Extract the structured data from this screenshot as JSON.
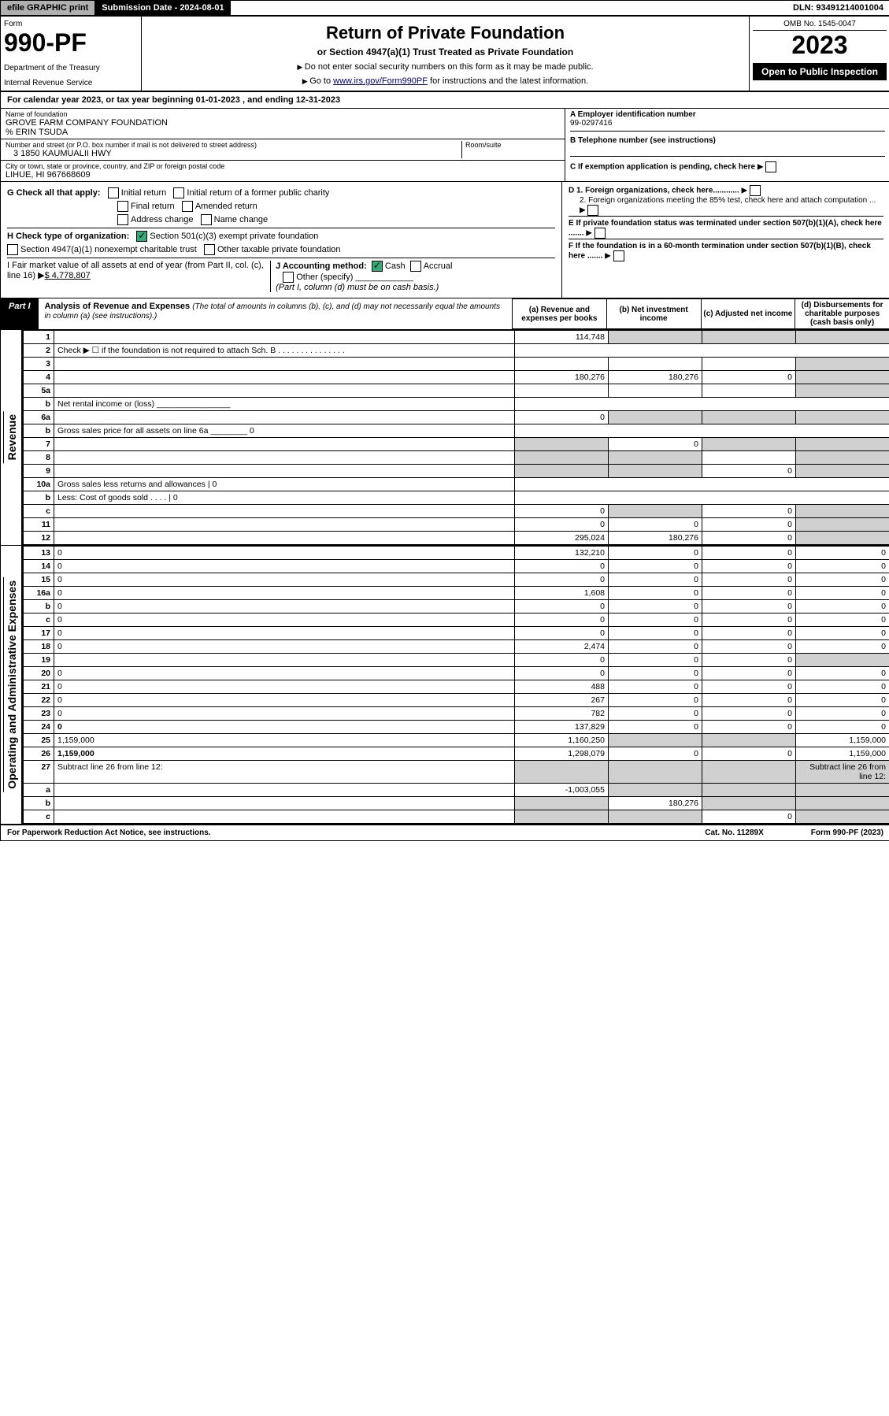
{
  "topbar": {
    "efile": "efile GRAPHIC print",
    "sub_label": "Submission Date - 2024-08-01",
    "dln": "DLN: 93491214001004"
  },
  "header": {
    "form_word": "Form",
    "form_num": "990-PF",
    "dept": "Department of the Treasury",
    "irs": "Internal Revenue Service",
    "title": "Return of Private Foundation",
    "subtitle": "or Section 4947(a)(1) Trust Treated as Private Foundation",
    "note1": "Do not enter social security numbers on this form as it may be made public.",
    "note2_prefix": "Go to ",
    "note2_link": "www.irs.gov/Form990PF",
    "note2_suffix": " for instructions and the latest information.",
    "omb": "OMB No. 1545-0047",
    "year": "2023",
    "open": "Open to Public Inspection"
  },
  "calendar": "For calendar year 2023, or tax year beginning 01-01-2023                           , and ending 12-31-2023",
  "entity": {
    "name_lbl": "Name of foundation",
    "name": "GROVE FARM COMPANY FOUNDATION",
    "care_of": "% ERIN TSUDA",
    "addr_lbl": "Number and street (or P.O. box number if mail is not delivered to street address)",
    "addr": "3 1850 KAUMUALII HWY",
    "room_lbl": "Room/suite",
    "room": "",
    "city_lbl": "City or town, state or province, country, and ZIP or foreign postal code",
    "city": "LIHUE, HI  967668609",
    "a_lbl": "A Employer identification number",
    "a_val": "99-0297416",
    "b_lbl": "B Telephone number (see instructions)",
    "b_val": "",
    "c_lbl": "C If exemption application is pending, check here",
    "d1": "D 1. Foreign organizations, check here............",
    "d2": "2. Foreign organizations meeting the 85% test, check here and attach computation ...",
    "e": "E  If private foundation status was terminated under section 507(b)(1)(A), check here .......",
    "f": "F  If the foundation is in a 60-month termination under section 507(b)(1)(B), check here ......."
  },
  "g": {
    "lbl": "G Check all that apply:",
    "opts": [
      "Initial return",
      "Initial return of a former public charity",
      "Final return",
      "Amended return",
      "Address change",
      "Name change"
    ]
  },
  "h": {
    "lbl": "H Check type of organization:",
    "opt1": "Section 501(c)(3) exempt private foundation",
    "opt1_checked": true,
    "opt2": "Section 4947(a)(1) nonexempt charitable trust",
    "opt3": "Other taxable private foundation"
  },
  "i": {
    "lbl": "I Fair market value of all assets at end of year (from Part II, col. (c), line 16) ",
    "val": "$  4,778,807"
  },
  "j": {
    "lbl": "J Accounting method:",
    "cash": "Cash",
    "cash_checked": true,
    "accrual": "Accrual",
    "other": "Other (specify)",
    "note": "(Part I, column (d) must be on cash basis.)"
  },
  "part1": {
    "label": "Part I",
    "title": "Analysis of Revenue and Expenses",
    "title_note": "(The total of amounts in columns (b), (c), and (d) may not necessarily equal the amounts in column (a) (see instructions).)",
    "cols": {
      "a": "(a)  Revenue and expenses per books",
      "b": "(b)  Net investment income",
      "c": "(c)  Adjusted net income",
      "d": "(d)  Disbursements for charitable purposes (cash basis only)"
    }
  },
  "revenue_label": "Revenue",
  "expenses_label": "Operating and Administrative Expenses",
  "rows": [
    {
      "n": "1",
      "d": "",
      "a": "114,748",
      "b": "",
      "c": "",
      "shade_bcd": true
    },
    {
      "n": "2",
      "d": "Check ▶ ☐ if the foundation is not required to attach Sch. B   .   .   .   .   .   .   .   .   .   .   .   .   .   .   .",
      "blank": true
    },
    {
      "n": "3",
      "d": "",
      "a": "",
      "b": "",
      "c": "",
      "shade_d": true
    },
    {
      "n": "4",
      "d": "",
      "a": "180,276",
      "b": "180,276",
      "c": "0",
      "shade_d": true
    },
    {
      "n": "5a",
      "d": "",
      "a": "",
      "b": "",
      "c": "",
      "shade_d": true
    },
    {
      "n": "b",
      "d": "Net rental income or (loss)   ________________",
      "blank": true
    },
    {
      "n": "6a",
      "d": "",
      "a": "0",
      "b": "",
      "c": "",
      "shade_bcd": true
    },
    {
      "n": "b",
      "d": "Gross sales price for all assets on line 6a ________ 0",
      "blank": true
    },
    {
      "n": "7",
      "d": "",
      "a": "",
      "b": "0",
      "c": "",
      "shade_a": true,
      "shade_cd": true
    },
    {
      "n": "8",
      "d": "",
      "a": "",
      "b": "",
      "c": "",
      "shade_ab": true,
      "shade_d": true
    },
    {
      "n": "9",
      "d": "",
      "a": "",
      "b": "",
      "c": "0",
      "shade_ab": true,
      "shade_d": true
    },
    {
      "n": "10a",
      "d": "Gross sales less returns and allowances   |           0",
      "blank": true
    },
    {
      "n": "b",
      "d": "Less: Cost of goods sold    .   .   .   .   |           0",
      "blank": true
    },
    {
      "n": "c",
      "d": "",
      "a": "0",
      "b": "",
      "c": "0",
      "shade_b": true,
      "shade_d": true
    },
    {
      "n": "11",
      "d": "",
      "a": "0",
      "b": "0",
      "c": "0",
      "shade_d": true
    },
    {
      "n": "12",
      "d": "",
      "a": "295,024",
      "b": "180,276",
      "c": "0",
      "bold": true,
      "shade_d": true
    }
  ],
  "exp_rows": [
    {
      "n": "13",
      "d": "0",
      "a": "132,210",
      "b": "0",
      "c": "0"
    },
    {
      "n": "14",
      "d": "0",
      "a": "0",
      "b": "0",
      "c": "0"
    },
    {
      "n": "15",
      "d": "0",
      "a": "0",
      "b": "0",
      "c": "0"
    },
    {
      "n": "16a",
      "d": "0",
      "a": "1,608",
      "b": "0",
      "c": "0"
    },
    {
      "n": "b",
      "d": "0",
      "a": "0",
      "b": "0",
      "c": "0"
    },
    {
      "n": "c",
      "d": "0",
      "a": "0",
      "b": "0",
      "c": "0"
    },
    {
      "n": "17",
      "d": "0",
      "a": "0",
      "b": "0",
      "c": "0"
    },
    {
      "n": "18",
      "d": "0",
      "a": "2,474",
      "b": "0",
      "c": "0"
    },
    {
      "n": "19",
      "d": "",
      "a": "0",
      "b": "0",
      "c": "0",
      "shade_d": true
    },
    {
      "n": "20",
      "d": "0",
      "a": "0",
      "b": "0",
      "c": "0"
    },
    {
      "n": "21",
      "d": "0",
      "a": "488",
      "b": "0",
      "c": "0"
    },
    {
      "n": "22",
      "d": "0",
      "a": "267",
      "b": "0",
      "c": "0"
    },
    {
      "n": "23",
      "d": "0",
      "a": "782",
      "b": "0",
      "c": "0"
    },
    {
      "n": "24",
      "d": "0",
      "a": "137,829",
      "b": "0",
      "c": "0",
      "bold": true
    },
    {
      "n": "25",
      "d": "1,159,000",
      "a": "1,160,250",
      "b": "",
      "c": "",
      "shade_bc": true
    },
    {
      "n": "26",
      "d": "1,159,000",
      "a": "1,298,079",
      "b": "0",
      "c": "0",
      "bold": true
    },
    {
      "n": "27",
      "d": "Subtract line 26 from line 12:",
      "blank_amt": true,
      "shade_all": true
    },
    {
      "n": "a",
      "d": "",
      "a": "-1,003,055",
      "b": "",
      "c": "",
      "bold": true,
      "shade_bcd": true
    },
    {
      "n": "b",
      "d": "",
      "a": "",
      "b": "180,276",
      "c": "",
      "bold": true,
      "shade_a": true,
      "shade_cd": true
    },
    {
      "n": "c",
      "d": "",
      "a": "",
      "b": "",
      "c": "0",
      "bold": true,
      "shade_ab": true,
      "shade_d": true
    }
  ],
  "footer": {
    "left": "For Paperwork Reduction Act Notice, see instructions.",
    "mid": "Cat. No. 11289X",
    "right": "Form 990-PF (2023)"
  }
}
